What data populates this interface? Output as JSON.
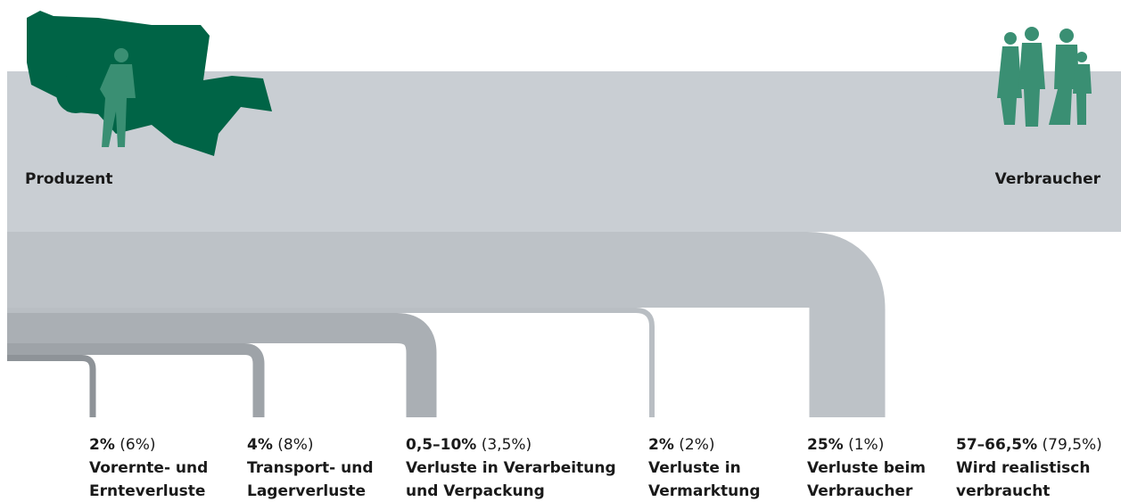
{
  "producer": "Produzent",
  "consumer": "Verbraucher",
  "stages": [
    {
      "share": "2%",
      "reference": "(6%)",
      "label": [
        "Vorernte- und",
        "Ernteverluste"
      ]
    },
    {
      "share": "4%",
      "reference": "(8%)",
      "label": [
        "Transport- und",
        "Lagerverluste"
      ]
    },
    {
      "share": "0,5–10%",
      "reference": "(3,5%)",
      "label": [
        "Verluste in Verarbeitung",
        "und Verpackung"
      ]
    },
    {
      "share": "2%",
      "reference": "(2%)",
      "label": [
        "Verluste in",
        "Vermarktung"
      ]
    },
    {
      "share": "25%",
      "reference": "(1%)",
      "label": [
        "Verluste beim",
        "Verbraucher"
      ]
    },
    {
      "share": "57–66,5%",
      "reference": "(79,5%)",
      "label": [
        "Wird realistisch",
        "verbraucht"
      ]
    }
  ]
}
